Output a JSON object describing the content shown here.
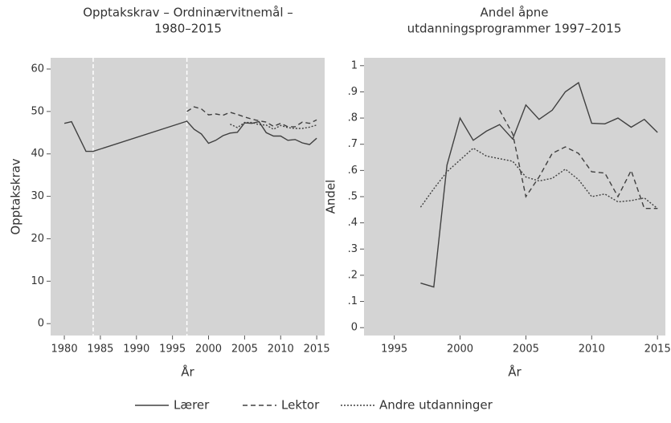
{
  "chart_data": [
    {
      "type": "line",
      "title": [
        "Opptakskrav – Ordninærvitnemål –",
        "1980–2015"
      ],
      "xlabel": "År",
      "ylabel": "Opptakskrav",
      "xlim": [
        1978.1,
        2016.1
      ],
      "ylim": [
        -2.8,
        62.65
      ],
      "xticks": [
        1980,
        1985,
        1990,
        1995,
        2000,
        2005,
        2010,
        2015
      ],
      "yticks": [
        0,
        10,
        20,
        30,
        40,
        50,
        60
      ],
      "vlines": [
        1984,
        1997
      ],
      "series": [
        {
          "name": "Lærer",
          "color": "#404040",
          "dash": "solid",
          "x": [
            1980,
            1981,
            1983,
            1984,
            1997,
            1998,
            1999,
            2000,
            2001,
            2002,
            2003,
            2004,
            2005,
            2006,
            2007,
            2008,
            2009,
            2010,
            2011,
            2012,
            2013,
            2014,
            2015
          ],
          "values": [
            47.2,
            47.6,
            40.6,
            40.6,
            47.7,
            45.8,
            44.7,
            42.5,
            43.2,
            44.3,
            44.9,
            45.1,
            47.3,
            47.2,
            47.6,
            45,
            44.2,
            44.2,
            43.2,
            43.4,
            42.6,
            42.2,
            43.7
          ]
        },
        {
          "name": "Lektor",
          "color": "#404040",
          "dash": "dashed",
          "x": [
            1997,
            1998,
            1999,
            2000,
            2001,
            2002,
            2003,
            2004,
            2005,
            2006,
            2007,
            2008,
            2009,
            2010,
            2011,
            2012,
            2013,
            2014,
            2015
          ],
          "values": [
            50,
            51.1,
            50.6,
            49.2,
            49.4,
            49.1,
            49.8,
            49.3,
            48.7,
            48.2,
            47.8,
            47.5,
            46.5,
            47.2,
            46.4,
            46.4,
            47.5,
            47.2,
            48
          ]
        },
        {
          "name": "Andre utdanninger",
          "color": "#404040",
          "dash": "dotted",
          "x": [
            2003,
            2004,
            2005,
            2006,
            2007,
            2008,
            2009,
            2010,
            2011,
            2012,
            2013,
            2014,
            2015
          ],
          "values": [
            47,
            46.2,
            47.4,
            47.4,
            46.9,
            46.8,
            45.8,
            46.7,
            46.2,
            46,
            46,
            46.3,
            46.8
          ]
        }
      ]
    },
    {
      "type": "line",
      "title": [
        "Andel åpne",
        "utdanningsprogrammer 1997–2015"
      ],
      "xlabel": "År",
      "ylabel": "Andel",
      "xlim": [
        1992.7,
        2015.6
      ],
      "ylim": [
        -0.03,
        1.03
      ],
      "xticks": [
        1995,
        2000,
        2005,
        2010,
        2015
      ],
      "yticks": [
        0,
        {
          "value": 0.1,
          "label": ".1"
        },
        {
          "value": 0.2,
          "label": ".2"
        },
        {
          "value": 0.3,
          "label": ".3"
        },
        {
          "value": 0.4,
          "label": ".4"
        },
        {
          "value": 0.5,
          "label": ".5"
        },
        {
          "value": 0.6,
          "label": ".6"
        },
        {
          "value": 0.7,
          "label": ".7"
        },
        {
          "value": 0.8,
          "label": ".8"
        },
        {
          "value": 0.9,
          "label": ".9"
        },
        1
      ],
      "series": [
        {
          "name": "Lærer",
          "color": "#404040",
          "dash": "solid",
          "x": [
            1997,
            1998,
            1999,
            2000,
            2001,
            2002,
            2003,
            2004,
            2005,
            2006,
            2007,
            2008,
            2009,
            2010,
            2011,
            2012,
            2013,
            2014,
            2015
          ],
          "values": [
            0.17,
            0.155,
            0.62,
            0.8,
            0.715,
            0.75,
            0.775,
            0.72,
            0.85,
            0.795,
            0.83,
            0.9,
            0.935,
            0.78,
            0.778,
            0.8,
            0.765,
            0.795,
            0.745
          ]
        },
        {
          "name": "Lektor",
          "color": "#404040",
          "dash": "dashed",
          "x": [
            2003,
            2004,
            2005,
            2006,
            2007,
            2008,
            2009,
            2010,
            2011,
            2012,
            2013,
            2014,
            2015
          ],
          "values": [
            0.83,
            0.74,
            0.5,
            0.575,
            0.665,
            0.69,
            0.665,
            0.595,
            0.59,
            0.5,
            0.6,
            0.455,
            0.455
          ]
        },
        {
          "name": "Andre utdanninger",
          "color": "#404040",
          "dash": "dotted",
          "x": [
            1997,
            1998,
            1999,
            2000,
            2001,
            2002,
            2003,
            2004,
            2005,
            2006,
            2007,
            2008,
            2009,
            2010,
            2011,
            2012,
            2013,
            2014,
            2015
          ],
          "values": [
            0.46,
            0.53,
            0.595,
            0.64,
            0.685,
            0.655,
            0.645,
            0.635,
            0.575,
            0.56,
            0.57,
            0.605,
            0.565,
            0.5,
            0.51,
            0.48,
            0.485,
            0.495,
            0.455
          ]
        }
      ]
    }
  ]
}
